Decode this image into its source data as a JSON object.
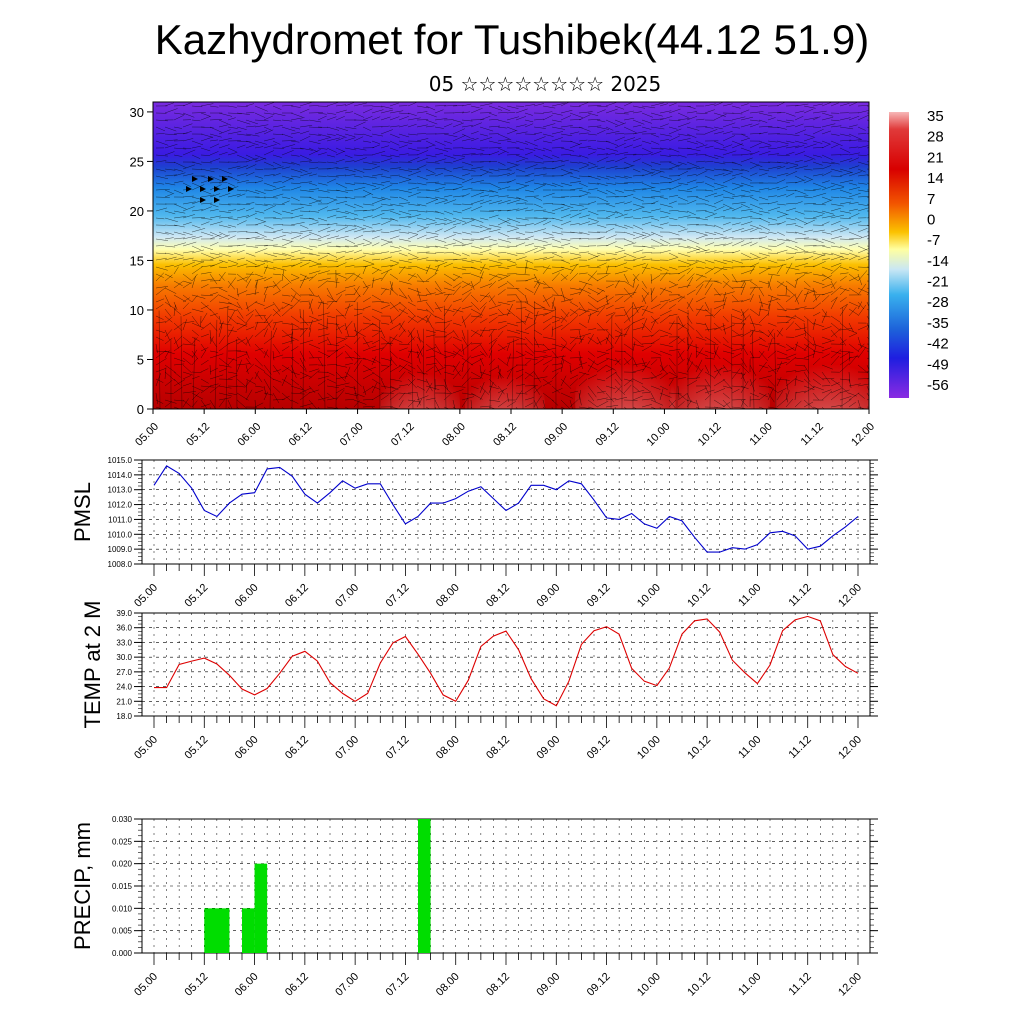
{
  "header": {
    "title": "Kazhydromet for Tushibek(44.12 51.9)",
    "subtitle": "05 ☆☆☆☆☆☆☆☆ 2025"
  },
  "colors": {
    "pmsl_line": "#0000cc",
    "temp_line": "#dd0000",
    "precip_bar": "#00dd00",
    "palette_top": "#f7b7b7",
    "palette_bottom": "#7a2be0"
  },
  "time_labels": [
    "05.00",
    "05.12",
    "06.00",
    "06.12",
    "07.00",
    "07.12",
    "08.00",
    "08.12",
    "09.00",
    "09.12",
    "10.00",
    "10.12",
    "11.00",
    "11.12",
    "12.00"
  ],
  "colorbar_labels": [
    "35",
    "28",
    "21",
    "14",
    "7",
    "0",
    "-7",
    "-14",
    "-21",
    "-28",
    "-35",
    "-42",
    "-49",
    "-56"
  ],
  "chart_data": [
    {
      "type": "heatmap",
      "name": "vertical cross-section",
      "x": [
        "05.00",
        "05.12",
        "06.00",
        "06.12",
        "07.00",
        "07.12",
        "08.00",
        "08.12",
        "09.00",
        "09.12",
        "10.00",
        "10.12",
        "11.00",
        "11.12",
        "12.00"
      ],
      "ylim": [
        0,
        31
      ],
      "y_ticks": [
        "0",
        "5",
        "10",
        "15",
        "20",
        "25",
        "30"
      ],
      "colorbar_levels": [
        35,
        28,
        21,
        14,
        7,
        0,
        -7,
        -14,
        -21,
        -28,
        -35,
        -42,
        -49,
        -56
      ],
      "overlay": "wind barbs"
    },
    {
      "type": "line",
      "ylabel": "PMSL",
      "ylim": [
        1008,
        1015
      ],
      "y_ticks": [
        "1015.0",
        "1014.0",
        "1013.0",
        "1012.0",
        "1011.0",
        "1010.0",
        "1009.0",
        "1008.0"
      ],
      "x_ticks": [
        "05.00",
        "05.12",
        "06.00",
        "06.12",
        "07.00",
        "07.12",
        "08.00",
        "08.12",
        "09.00",
        "09.12",
        "10.00",
        "10.12",
        "11.00",
        "11.12",
        "12.00"
      ],
      "x_hours": [
        0,
        3,
        6,
        9,
        12,
        15,
        18,
        21,
        24,
        27,
        30,
        33,
        36,
        39,
        42,
        45,
        48,
        51,
        54,
        57,
        60,
        63,
        66,
        69,
        72,
        75,
        78,
        81,
        84,
        87,
        90,
        93,
        96,
        99,
        102,
        105,
        108,
        111,
        114,
        117,
        120,
        123,
        126,
        129,
        132,
        135,
        138,
        141,
        144,
        147,
        150,
        153,
        156,
        159,
        162,
        165,
        168
      ],
      "values": [
        1013.3,
        1014.6,
        1014.1,
        1013.1,
        1011.6,
        1011.2,
        1012.1,
        1012.7,
        1012.8,
        1014.4,
        1014.5,
        1013.9,
        1012.7,
        1012.1,
        1012.8,
        1013.6,
        1013.1,
        1013.4,
        1013.4,
        1012.0,
        1010.7,
        1011.2,
        1012.1,
        1012.1,
        1012.4,
        1012.9,
        1013.2,
        1012.4,
        1011.6,
        1012.1,
        1013.3,
        1013.3,
        1013.0,
        1013.6,
        1013.4,
        1012.3,
        1011.1,
        1011.0,
        1011.4,
        1010.7,
        1010.4,
        1011.2,
        1010.9,
        1009.8,
        1008.8,
        1008.8,
        1009.1,
        1009.0,
        1009.3,
        1010.1,
        1010.2,
        1009.9,
        1009.0,
        1009.2,
        1009.9,
        1010.5,
        1011.2
      ]
    },
    {
      "type": "line",
      "ylabel": "TEMP at 2 M",
      "ylim": [
        18,
        39
      ],
      "y_ticks": [
        "39.0",
        "36.0",
        "33.0",
        "30.0",
        "27.0",
        "24.0",
        "21.0",
        "18.0"
      ],
      "x_ticks": [
        "05.00",
        "05.12",
        "06.00",
        "06.12",
        "07.00",
        "07.12",
        "08.00",
        "08.12",
        "09.00",
        "09.12",
        "10.00",
        "10.12",
        "11.00",
        "11.12",
        "12.00"
      ],
      "x_hours": [
        0,
        3,
        6,
        9,
        12,
        15,
        18,
        21,
        24,
        27,
        30,
        33,
        36,
        39,
        42,
        45,
        48,
        51,
        54,
        57,
        60,
        63,
        66,
        69,
        72,
        75,
        78,
        81,
        84,
        87,
        90,
        93,
        96,
        99,
        102,
        105,
        108,
        111,
        114,
        117,
        120,
        123,
        126,
        129,
        132,
        135,
        138,
        141,
        144,
        147,
        150,
        153,
        156,
        159,
        162,
        165,
        168
      ],
      "values": [
        23.8,
        23.8,
        28.5,
        29.2,
        29.8,
        28.6,
        26.3,
        23.5,
        22.3,
        23.6,
        26.7,
        30.2,
        31.2,
        29.2,
        24.8,
        22.6,
        21.0,
        22.6,
        28.8,
        32.9,
        34.2,
        30.6,
        26.7,
        22.3,
        21.0,
        25.3,
        32.2,
        34.3,
        35.3,
        31.5,
        25.6,
        21.5,
        20.1,
        25.1,
        32.6,
        35.4,
        36.2,
        34.7,
        27.7,
        25.1,
        24.2,
        27.8,
        34.7,
        37.4,
        37.8,
        35.1,
        29.4,
        26.8,
        24.6,
        28.4,
        35.4,
        37.6,
        38.3,
        37.4,
        30.5,
        28.1,
        26.7
      ]
    },
    {
      "type": "bar",
      "ylabel": "PRECIP, mm",
      "ylim": [
        0,
        0.03
      ],
      "y_ticks": [
        "0.030",
        "0.025",
        "0.020",
        "0.015",
        "0.010",
        "0.005",
        "0.000"
      ],
      "x_ticks": [
        "05.00",
        "05.12",
        "06.00",
        "06.12",
        "07.00",
        "07.12",
        "08.00",
        "08.12",
        "09.00",
        "09.12",
        "10.00",
        "10.12",
        "11.00",
        "11.12",
        "12.00"
      ],
      "bars": [
        {
          "start_hour": 12,
          "end_hour": 18,
          "value": 0.01
        },
        {
          "start_hour": 21,
          "end_hour": 24,
          "value": 0.01
        },
        {
          "start_hour": 24,
          "end_hour": 27,
          "value": 0.02
        },
        {
          "start_hour": 63,
          "end_hour": 66,
          "value": 0.03
        }
      ]
    }
  ]
}
